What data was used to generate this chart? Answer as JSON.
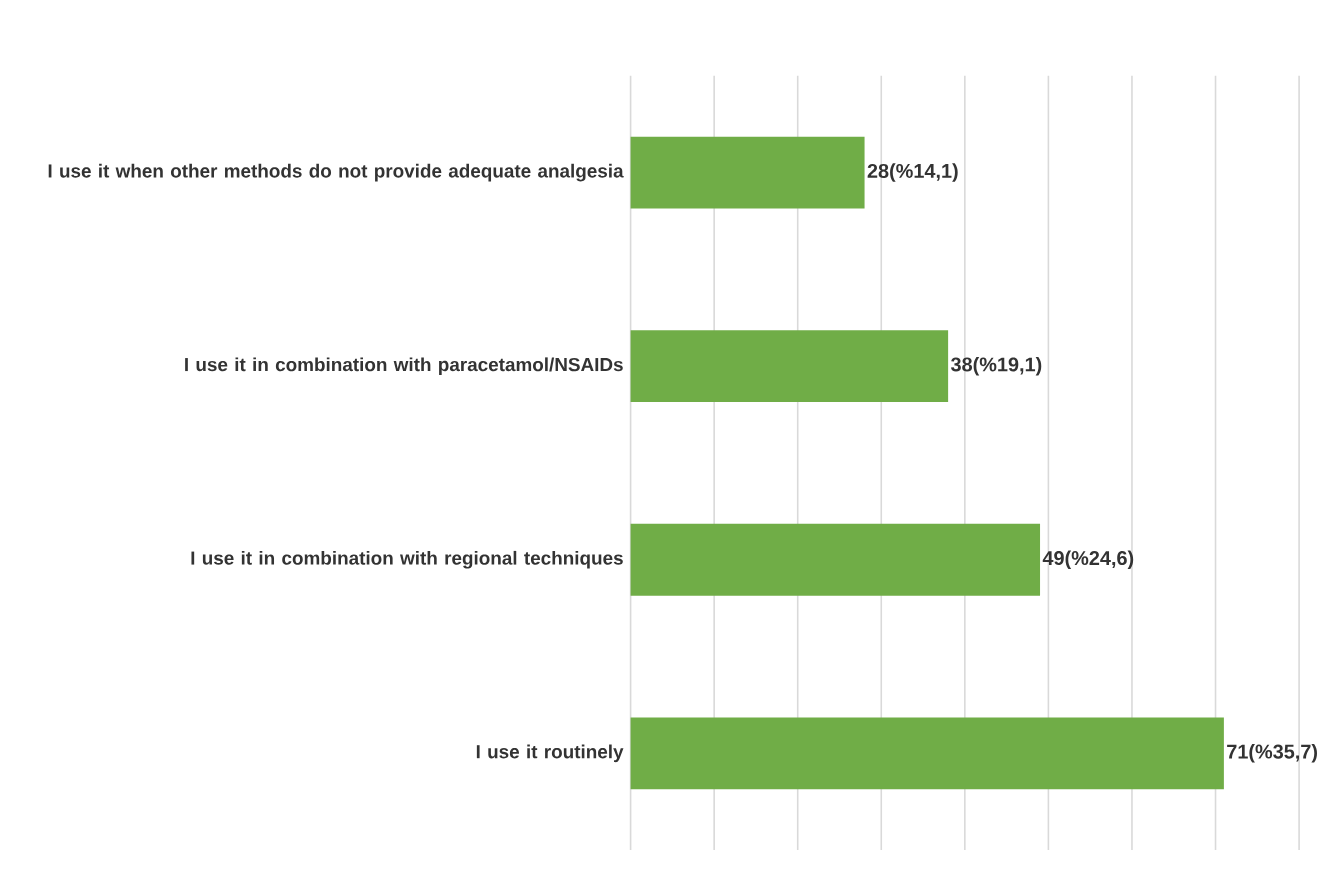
{
  "chart_data": {
    "type": "bar",
    "orientation": "horizontal",
    "categories": [
      "I use it when other methods do not provide adequate analgesia",
      "I use it in combination with paracetamol/NSAIDs",
      "I use it in combination with regional techniques",
      "I use it routinely"
    ],
    "values": [
      28,
      38,
      49,
      71
    ],
    "value_labels": [
      "28(%14,1)",
      "38(%19,1)",
      "49(%24,6)",
      "71(%35,7)"
    ],
    "color": "#70ad47",
    "xlim": [
      0,
      80
    ],
    "xticks": [
      {
        "value": 0,
        "label": null
      },
      {
        "value": 10,
        "label": null
      },
      {
        "value": 20,
        "label": null
      },
      {
        "value": 30,
        "label": null
      },
      {
        "value": 40,
        "label": null
      },
      {
        "value": 50,
        "label": null
      },
      {
        "value": 60,
        "label": null
      },
      {
        "value": 70,
        "label": null
      },
      {
        "value": 80,
        "label": null
      }
    ],
    "grid": "x",
    "tick_labels": "y"
  }
}
